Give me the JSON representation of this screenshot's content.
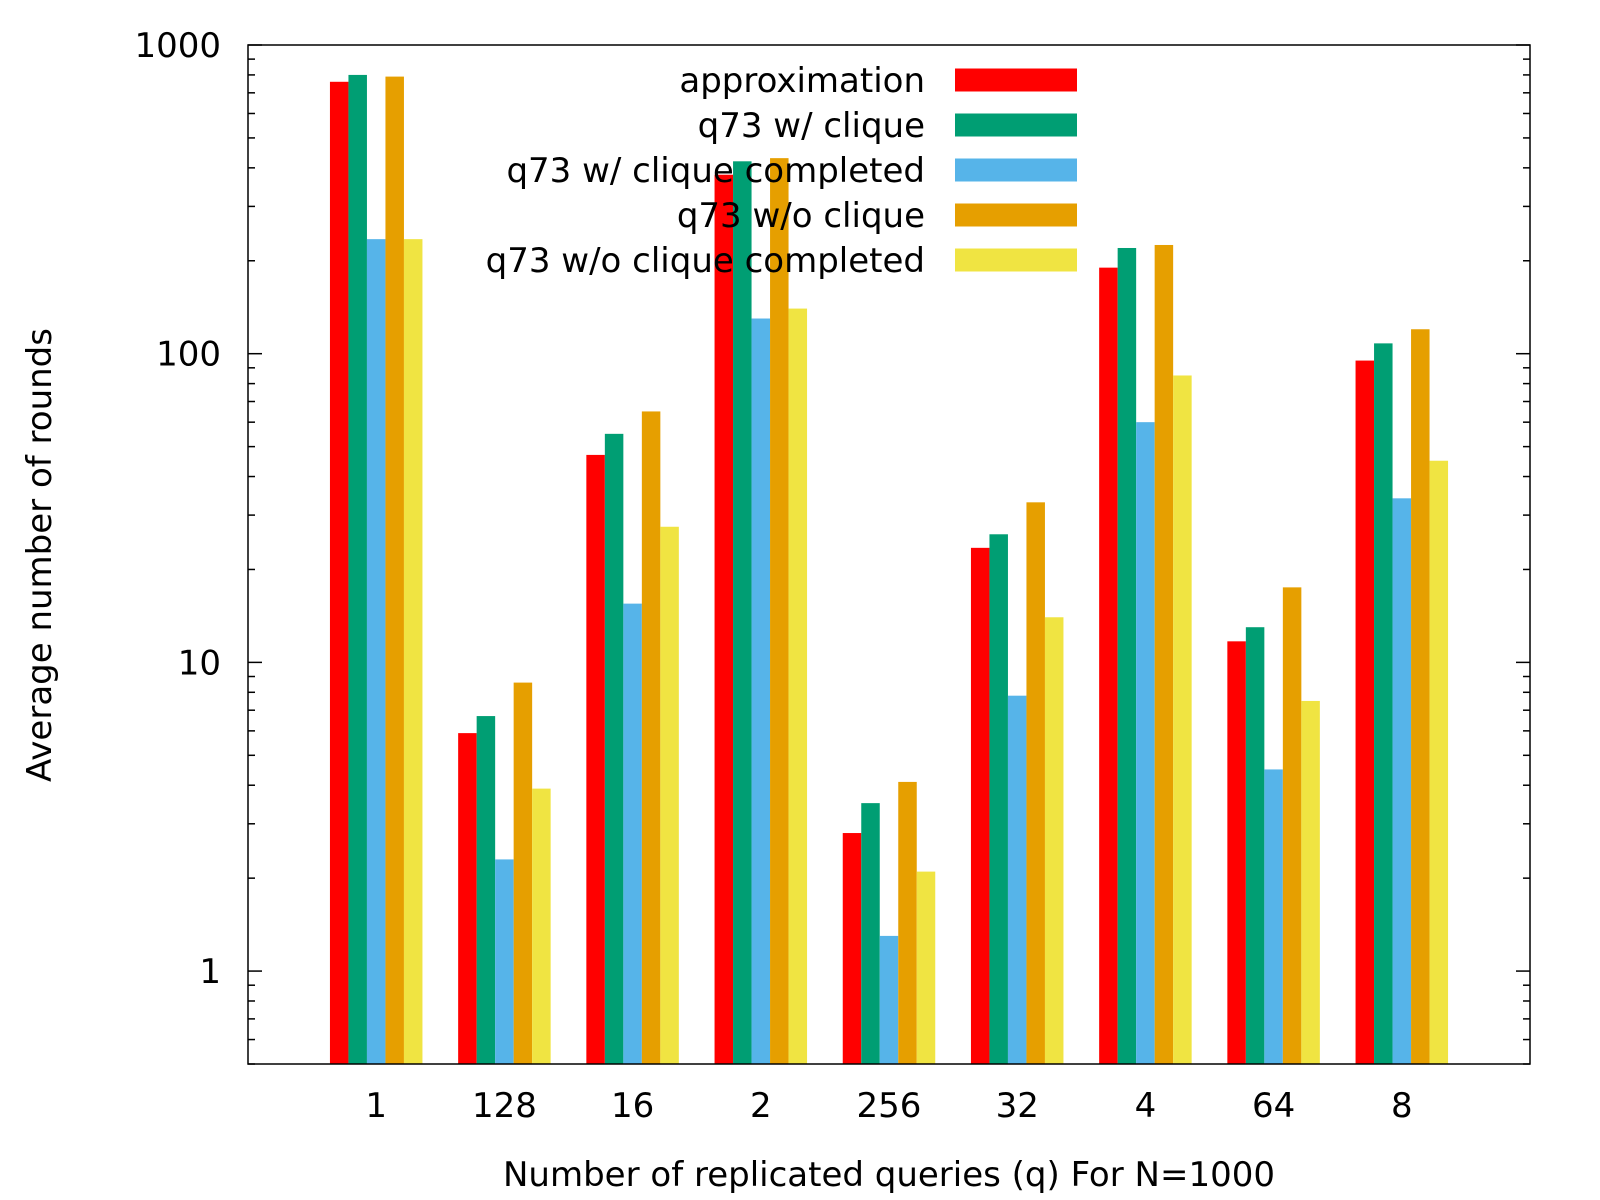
{
  "chart_data": {
    "type": "bar",
    "title": "",
    "xlabel": "Number of replicated queries (q) For N=1000",
    "ylabel": "Average number of rounds",
    "yscale": "log",
    "ylim": [
      0.5,
      1000
    ],
    "yticks": [
      {
        "value": 1,
        "label": "1"
      },
      {
        "value": 10,
        "label": "10"
      },
      {
        "value": 100,
        "label": "100"
      },
      {
        "value": 1000,
        "label": "1000"
      }
    ],
    "legend_position": "top-center",
    "grid": false,
    "categories": [
      "1",
      "128",
      "16",
      "2",
      "256",
      "32",
      "4",
      "64",
      "8"
    ],
    "series": [
      {
        "name": "approximation",
        "color": "#ff0000",
        "values": [
          760,
          5.9,
          47,
          380,
          2.8,
          23.5,
          190,
          11.7,
          95
        ]
      },
      {
        "name": "q73 w/ clique",
        "color": "#009e73",
        "values": [
          800,
          6.7,
          55,
          420,
          3.5,
          26,
          220,
          13,
          108
        ]
      },
      {
        "name": "q73 w/ clique completed",
        "color": "#56b4e9",
        "values": [
          235,
          2.3,
          15.5,
          130,
          1.3,
          7.8,
          60,
          4.5,
          34
        ]
      },
      {
        "name": "q73 w/o clique",
        "color": "#e69f00",
        "values": [
          790,
          8.6,
          65,
          430,
          4.1,
          33,
          225,
          17.5,
          120
        ]
      },
      {
        "name": "q73 w/o clique completed",
        "color": "#f0e442",
        "values": [
          235,
          3.9,
          27.5,
          140,
          2.1,
          14,
          85,
          7.5,
          45
        ]
      }
    ]
  }
}
